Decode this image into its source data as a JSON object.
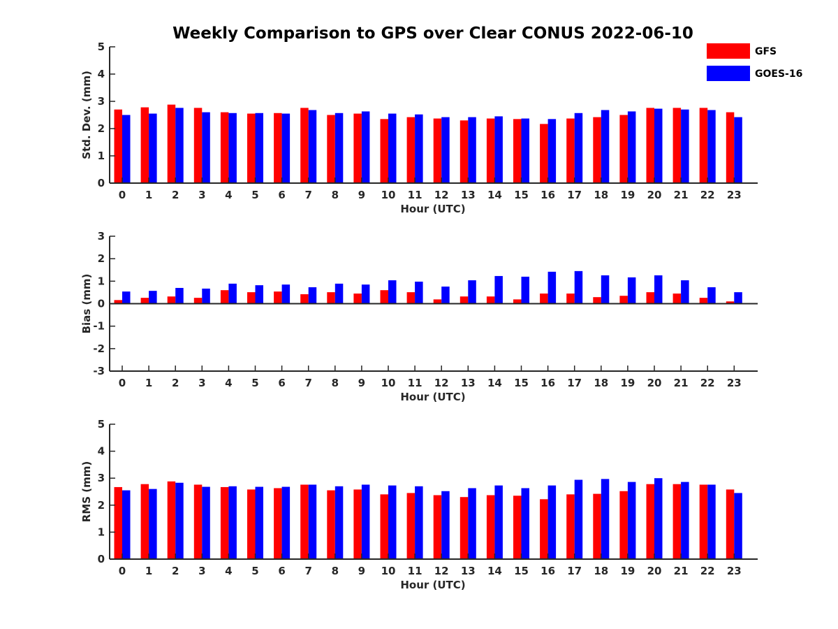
{
  "chart_data": {
    "type": "bar",
    "title": "Weekly Comparison to GPS over Clear CONUS 2022-06-10",
    "legend": {
      "placement": "top-right",
      "entries": [
        {
          "name": "GFS",
          "color": "#ff0000"
        },
        {
          "name": "GOES-16",
          "color": "#0000ff"
        }
      ]
    },
    "categories": [
      "0",
      "1",
      "2",
      "3",
      "4",
      "5",
      "6",
      "7",
      "8",
      "9",
      "10",
      "11",
      "12",
      "13",
      "14",
      "15",
      "16",
      "17",
      "18",
      "19",
      "20",
      "21",
      "22",
      "23"
    ],
    "panels": [
      {
        "name": "std-dev",
        "ylabel": "Std. Dev. (mm)",
        "xlabel": "Hour (UTC)",
        "ylim": [
          0,
          5
        ],
        "yticks": [
          "0",
          "1",
          "2",
          "3",
          "4",
          "5"
        ],
        "series": [
          {
            "name": "GFS",
            "color": "#ff0000",
            "values": [
              2.7,
              2.78,
              2.88,
              2.76,
              2.6,
              2.55,
              2.57,
              2.76,
              2.5,
              2.55,
              2.35,
              2.42,
              2.37,
              2.3,
              2.37,
              2.35,
              2.17,
              2.37,
              2.42,
              2.5,
              2.76,
              2.76,
              2.76,
              2.6
            ]
          },
          {
            "name": "GOES-16",
            "color": "#0000ff",
            "values": [
              2.5,
              2.55,
              2.76,
              2.6,
              2.57,
              2.57,
              2.55,
              2.68,
              2.57,
              2.63,
              2.55,
              2.52,
              2.42,
              2.42,
              2.45,
              2.37,
              2.35,
              2.57,
              2.68,
              2.63,
              2.73,
              2.7,
              2.68,
              2.42
            ]
          }
        ]
      },
      {
        "name": "bias",
        "ylabel": "Bias (mm)",
        "xlabel": "Hour (UTC)",
        "ylim": [
          -3,
          3
        ],
        "yticks": [
          "-3",
          "-2",
          "-1",
          "0",
          "1",
          "2",
          "3"
        ],
        "series": [
          {
            "name": "GFS",
            "color": "#ff0000",
            "values": [
              0.16,
              0.26,
              0.32,
              0.26,
              0.6,
              0.51,
              0.54,
              0.42,
              0.51,
              0.45,
              0.6,
              0.51,
              0.19,
              0.32,
              0.32,
              0.19,
              0.45,
              0.45,
              0.29,
              0.35,
              0.51,
              0.45,
              0.26,
              0.1
            ]
          },
          {
            "name": "GOES-16",
            "color": "#0000ff",
            "values": [
              0.54,
              0.57,
              0.7,
              0.67,
              0.89,
              0.82,
              0.85,
              0.73,
              0.89,
              0.85,
              1.04,
              0.98,
              0.76,
              1.04,
              1.23,
              1.2,
              1.42,
              1.45,
              1.26,
              1.17,
              1.26,
              1.04,
              0.73,
              0.51
            ]
          }
        ]
      },
      {
        "name": "rms",
        "ylabel": "RMS (mm)",
        "xlabel": "Hour (UTC)",
        "ylim": [
          0,
          5
        ],
        "yticks": [
          "0",
          "1",
          "2",
          "3",
          "4",
          "5"
        ],
        "series": [
          {
            "name": "GFS",
            "color": "#ff0000",
            "values": [
              2.67,
              2.78,
              2.88,
              2.76,
              2.67,
              2.58,
              2.63,
              2.76,
              2.55,
              2.58,
              2.4,
              2.45,
              2.37,
              2.3,
              2.37,
              2.35,
              2.22,
              2.4,
              2.42,
              2.52,
              2.78,
              2.78,
              2.76,
              2.58
            ]
          },
          {
            "name": "GOES-16",
            "color": "#0000ff",
            "values": [
              2.55,
              2.6,
              2.83,
              2.68,
              2.7,
              2.68,
              2.68,
              2.76,
              2.7,
              2.76,
              2.73,
              2.7,
              2.52,
              2.63,
              2.73,
              2.63,
              2.73,
              2.94,
              2.97,
              2.86,
              3.0,
              2.86,
              2.76,
              2.45
            ]
          }
        ]
      }
    ]
  }
}
